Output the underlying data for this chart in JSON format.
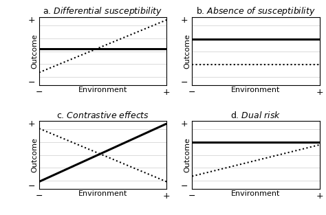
{
  "panels": [
    {
      "title_prefix": "a. ",
      "title_suffix": "Differential susceptibility",
      "solid_line": {
        "x": [
          -1,
          1
        ],
        "y": [
          0.08,
          0.08
        ]
      },
      "dotted_line": {
        "x": [
          -1,
          1
        ],
        "y": [
          -0.62,
          0.92
        ]
      }
    },
    {
      "title_prefix": "b. ",
      "title_suffix": "Absence of susceptibility",
      "solid_line": {
        "x": [
          -1,
          1
        ],
        "y": [
          0.35,
          0.35
        ]
      },
      "dotted_line": {
        "x": [
          -1,
          1
        ],
        "y": [
          -0.38,
          -0.38
        ]
      }
    },
    {
      "title_prefix": "c. ",
      "title_suffix": "Contrastive effects",
      "solid_line": {
        "x": [
          -1,
          1
        ],
        "y": [
          -0.78,
          0.92
        ]
      },
      "dotted_line": {
        "x": [
          -1,
          1
        ],
        "y": [
          0.78,
          -0.78
        ]
      }
    },
    {
      "title_prefix": "d. ",
      "title_suffix": "Dual risk",
      "solid_line": {
        "x": [
          -1,
          1
        ],
        "y": [
          0.38,
          0.38
        ]
      },
      "dotted_line": {
        "x": [
          -1,
          1
        ],
        "y": [
          -0.62,
          0.3
        ]
      }
    }
  ],
  "xlabel": "Environment",
  "ylabel": "Outcome",
  "xlim": [
    -1.0,
    1.0
  ],
  "ylim": [
    -1.0,
    1.0
  ],
  "grid_yvals": [
    -0.75,
    -0.375,
    0.0,
    0.375,
    0.75
  ],
  "ytick_neg_y": -0.92,
  "ytick_pos_y": 0.92,
  "xtick_neg_x": -1.0,
  "xtick_pos_x": 1.0,
  "solid_lw": 2.2,
  "dotted_lw": 1.5,
  "grid_color": "#cccccc",
  "grid_lw": 0.5,
  "background_color": "#ffffff",
  "title_fontsize": 9,
  "label_fontsize": 8,
  "tick_fontsize": 9,
  "ylabel_fontsize": 8
}
